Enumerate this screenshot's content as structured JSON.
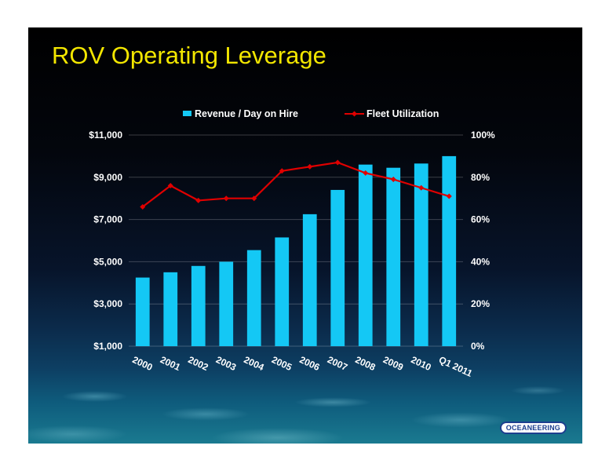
{
  "slide": {
    "title": "ROV Operating Leverage",
    "logo_text": "OCEANEERING"
  },
  "chart_data": {
    "type": "bar",
    "categories": [
      "2000",
      "2001",
      "2002",
      "2003",
      "2004",
      "2005",
      "2006",
      "2007",
      "2008",
      "2009",
      "2010",
      "Q1 2011"
    ],
    "series": [
      {
        "name": "Revenue / Day on Hire",
        "type": "bar",
        "axis": "left",
        "color": "#14c8f5",
        "values": [
          4250,
          4500,
          4800,
          5000,
          5550,
          6150,
          7250,
          8400,
          9600,
          9450,
          9650,
          10000
        ]
      },
      {
        "name": "Fleet Utilization",
        "type": "line",
        "axis": "right",
        "color": "#e00000",
        "values": [
          66,
          76,
          69,
          70,
          70,
          83,
          85,
          87,
          82,
          79,
          75,
          71
        ]
      }
    ],
    "y_left": {
      "ylim": [
        1000,
        11000
      ],
      "ticks": [
        1000,
        3000,
        5000,
        7000,
        9000,
        11000
      ],
      "tick_labels": [
        "$1,000",
        "$3,000",
        "$5,000",
        "$7,000",
        "$9,000",
        "$11,000"
      ]
    },
    "y_right": {
      "ylim": [
        0,
        100
      ],
      "ticks": [
        0,
        20,
        40,
        60,
        80,
        100
      ],
      "tick_labels": [
        "0%",
        "20%",
        "40%",
        "60%",
        "80%",
        "100%"
      ]
    },
    "legend": "top-center",
    "grid": true
  }
}
